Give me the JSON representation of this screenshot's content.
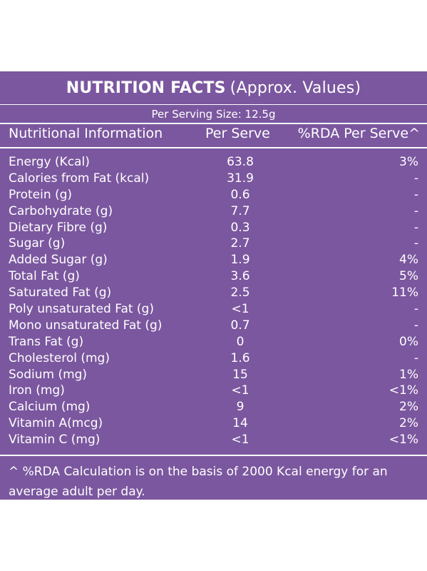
{
  "panel_color": "#7b579f",
  "title": "NUTRITION FACTS",
  "title_suffix": "(Approx. Values)",
  "serving": "Per Serving Size: 12.5g",
  "header": {
    "name": "Nutritional Information",
    "per_serve": "Per Serve",
    "rda": "%RDA Per Serve^"
  },
  "rows": [
    {
      "name": "Energy (Kcal)",
      "value": "63.8",
      "rda": "3%"
    },
    {
      "name": "Calories from Fat (kcal)",
      "value": "31.9",
      "rda": "-"
    },
    {
      "name": "Protein (g)",
      "value": "0.6",
      "rda": "-"
    },
    {
      "name": "Carbohydrate (g)",
      "value": "7.7",
      "rda": "-"
    },
    {
      "name": "Dietary Fibre (g)",
      "value": "0.3",
      "rda": "-"
    },
    {
      "name": "Sugar (g)",
      "value": "2.7",
      "rda": "-"
    },
    {
      "name": "Added Sugar (g)",
      "value": "1.9",
      "rda": "4%"
    },
    {
      "name": "Total Fat (g)",
      "value": "3.6",
      "rda": "5%"
    },
    {
      "name": "Saturated Fat (g)",
      "value": "2.5",
      "rda": "11%"
    },
    {
      "name": "Poly unsaturated Fat (g)",
      "value": "<1",
      "rda": "-"
    },
    {
      "name": "Mono unsaturated Fat (g)",
      "value": "0.7",
      "rda": "-"
    },
    {
      "name": "Trans Fat (g)",
      "value": "0",
      "rda": "0%"
    },
    {
      "name": "Cholesterol (mg)",
      "value": "1.6",
      "rda": "-"
    },
    {
      "name": "Sodium (mg)",
      "value": "15",
      "rda": "1%"
    },
    {
      "name": "Iron (mg)",
      "value": "<1",
      "rda": "<1%"
    },
    {
      "name": "Calcium (mg)",
      "value": "9",
      "rda": "2%"
    },
    {
      "name": "Vitamin A(mcg)",
      "value": "14",
      "rda": "2%"
    },
    {
      "name": "Vitamin C (mg)",
      "value": "<1",
      "rda": "<1%"
    }
  ],
  "footnote": "^ %RDA Calculation is on the basis of 2000 Kcal energy for an average adult per day."
}
